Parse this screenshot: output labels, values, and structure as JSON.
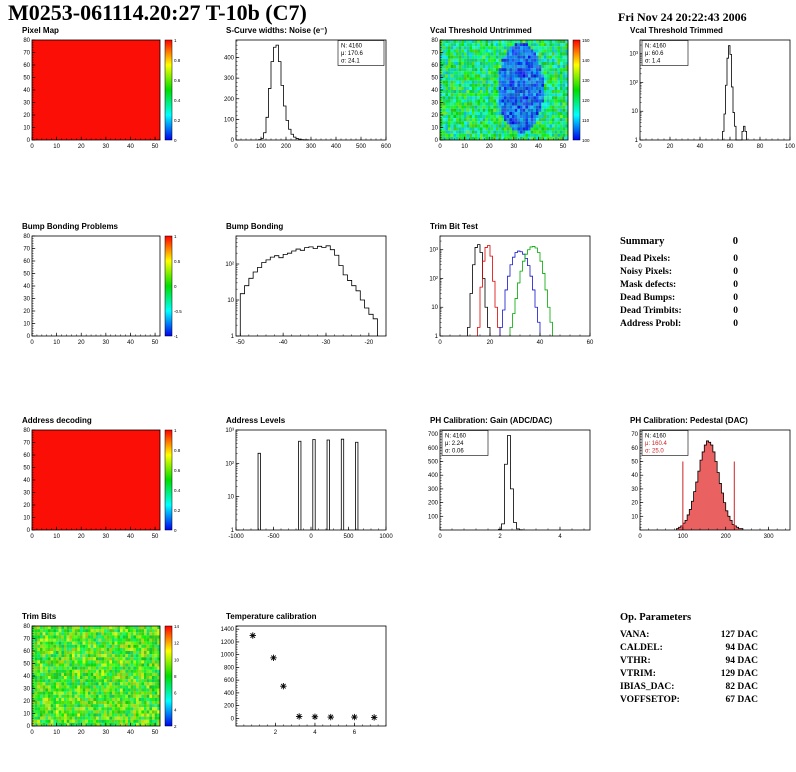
{
  "header": {
    "title": "M0253-061114.20:27 T-10b (C7)",
    "timestamp": "Fri Nov 24 20:22:43 2006"
  },
  "summary": {
    "heading": "Summary",
    "heading_value": "0",
    "rows": [
      {
        "label": "Dead Pixels:",
        "value": "0"
      },
      {
        "label": "Noisy Pixels:",
        "value": "0"
      },
      {
        "label": "Mask defects:",
        "value": "0"
      },
      {
        "label": "Dead Bumps:",
        "value": "0"
      },
      {
        "label": "Dead Trimbits:",
        "value": "0"
      },
      {
        "label": "Address Probl:",
        "value": "0"
      }
    ]
  },
  "op_parameters": {
    "heading": "Op. Parameters",
    "rows": [
      {
        "label": "VANA:",
        "value": "127 DAC"
      },
      {
        "label": "CALDEL:",
        "value": "94 DAC"
      },
      {
        "label": "VTHR:",
        "value": "94 DAC"
      },
      {
        "label": "VTRIM:",
        "value": "129 DAC"
      },
      {
        "label": "IBIAS_DAC:",
        "value": "82 DAC"
      },
      {
        "label": "VOFFSETOP:",
        "value": "67 DAC"
      }
    ]
  },
  "colors": {
    "map_red": "#fb0e06",
    "hist_line": "#000000",
    "trim_red": "#dd0000",
    "trim_blue": "#1414cc",
    "trim_green": "#00a800",
    "pedestal_fill": "#e85050",
    "stat_red": "#cc2222"
  },
  "chart_data": [
    {
      "id": "pixel-map",
      "type": "heatmap",
      "title": "Pixel Map",
      "x_range": [
        0,
        52
      ],
      "x_ticks": [
        0,
        10,
        20,
        30,
        40,
        50
      ],
      "y_range": [
        0,
        80
      ],
      "y_ticks": [
        0,
        10,
        20,
        30,
        40,
        50,
        60,
        70,
        80
      ],
      "fill": "solid",
      "fill_color": "#fb0e06",
      "colorbar_labels": [
        "1",
        "0.8",
        "0.6",
        "0.4",
        "0.2",
        "0"
      ]
    },
    {
      "id": "s-curve-noise",
      "type": "histogram",
      "title": "S-Curve widths: Noise (e⁻)",
      "x_range": [
        0,
        600
      ],
      "x_ticks": [
        0,
        100,
        200,
        300,
        400,
        500,
        600
      ],
      "y_range": [
        0,
        485
      ],
      "y_ticks": [
        0,
        100,
        200,
        300,
        400
      ],
      "stats": {
        "pos": "right",
        "lines": [
          {
            "text": "N: 4160"
          },
          {
            "text": "μ: 170.6"
          },
          {
            "text": "σ: 24.1"
          }
        ]
      },
      "series": [
        {
          "color": "#000000",
          "start": 90,
          "bin_width": 10,
          "values": [
            2,
            8,
            35,
            110,
            250,
            380,
            450,
            460,
            380,
            265,
            165,
            95,
            52,
            28,
            14,
            7,
            4,
            2,
            1,
            1
          ]
        }
      ]
    },
    {
      "id": "vcal-threshold-untrimmed",
      "type": "heatmap",
      "title": "Vcal Threshold Untrimmed",
      "x_range": [
        0,
        52
      ],
      "x_ticks": [
        0,
        10,
        20,
        30,
        40,
        50
      ],
      "y_range": [
        0,
        80
      ],
      "y_ticks": [
        0,
        10,
        20,
        30,
        40,
        50,
        60,
        70,
        80
      ],
      "fill": "noise",
      "noise": {
        "seed": 7,
        "hue_min": 95,
        "hue_max": 190,
        "blob": {
          "cx": 0.63,
          "cy": 0.48,
          "rx": 0.18,
          "ry": 0.45,
          "hue_min": 195,
          "hue_max": 238
        }
      },
      "colorbar_labels": [
        "150",
        "140",
        "130",
        "120",
        "110",
        "100"
      ]
    },
    {
      "id": "vcal-threshold-trimmed",
      "type": "histogram",
      "title": "Vcal Threshold Trimmed",
      "log_y": true,
      "x_range": [
        0,
        100
      ],
      "x_ticks": [
        0,
        20,
        40,
        60,
        80,
        100
      ],
      "y_range": [
        1,
        3000
      ],
      "y_ticks": [
        1,
        10,
        100,
        1000
      ],
      "y_tick_labels": [
        "1",
        "10",
        "10²",
        "10³"
      ],
      "stats": {
        "pos": "left",
        "lines": [
          {
            "text": "N: 4160"
          },
          {
            "text": "μ: 60.6"
          },
          {
            "text": "σ: 1.4"
          }
        ]
      },
      "series": [
        {
          "color": "#000000",
          "start": 55,
          "bin_width": 1,
          "values": [
            2,
            8,
            80,
            700,
            1900,
            950,
            70,
            9,
            3,
            0,
            0,
            0,
            0,
            2,
            3,
            2
          ]
        }
      ]
    },
    {
      "id": "bump-bonding-problems",
      "type": "heatmap",
      "title": "Bump Bonding Problems",
      "x_range": [
        0,
        52
      ],
      "x_ticks": [
        0,
        10,
        20,
        30,
        40,
        50
      ],
      "y_range": [
        0,
        80
      ],
      "y_ticks": [
        0,
        10,
        20,
        30,
        40,
        50,
        60,
        70,
        80
      ],
      "fill": "empty",
      "colorbar_labels": [
        "1",
        "0.5",
        "0",
        "-0.5",
        "-1"
      ]
    },
    {
      "id": "bump-bonding",
      "type": "histogram",
      "title": "Bump Bonding",
      "log_y": true,
      "x_range": [
        -51,
        -16
      ],
      "x_ticks": [
        -50,
        -40,
        -30,
        -20
      ],
      "y_range": [
        1,
        600
      ],
      "y_ticks": [
        1,
        10,
        100
      ],
      "y_tick_labels": [
        "1",
        "10",
        "10²"
      ],
      "series": [
        {
          "color": "#000000",
          "start": -50,
          "bin_width": 1,
          "values": [
            15,
            25,
            40,
            60,
            80,
            110,
            130,
            155,
            170,
            150,
            185,
            200,
            230,
            260,
            240,
            285,
            300,
            270,
            310,
            290,
            320,
            250,
            175,
            90,
            50,
            35,
            25,
            18,
            10,
            6,
            4,
            3
          ]
        }
      ]
    },
    {
      "id": "trim-bit-test",
      "type": "histogram",
      "title": "Trim Bit Test",
      "log_y": true,
      "x_range": [
        0,
        60
      ],
      "x_ticks": [
        0,
        20,
        40,
        60
      ],
      "y_range": [
        1,
        3000
      ],
      "y_ticks": [
        1,
        10,
        100,
        1000
      ],
      "y_tick_labels": [
        "1",
        "10",
        "10²",
        "10³"
      ],
      "series": [
        {
          "color": "#000000",
          "start": 11,
          "bin_width": 1,
          "values": [
            2,
            30,
            300,
            1200,
            1500,
            800,
            100,
            10,
            2
          ]
        },
        {
          "color": "#dd0000",
          "start": 15,
          "bin_width": 1,
          "values": [
            2,
            50,
            400,
            1200,
            1400,
            600,
            80,
            10,
            2
          ]
        },
        {
          "color": "#1414cc",
          "start": 24,
          "bin_width": 1,
          "values": [
            2,
            8,
            40,
            120,
            300,
            550,
            800,
            900,
            850,
            700,
            500,
            280,
            120,
            40,
            10,
            3
          ]
        },
        {
          "color": "#00a800",
          "start": 28,
          "bin_width": 1,
          "values": [
            2,
            6,
            20,
            70,
            180,
            400,
            700,
            1000,
            1250,
            1300,
            1150,
            800,
            400,
            150,
            40,
            10,
            3
          ]
        }
      ]
    },
    {
      "id": "address-decoding",
      "type": "heatmap",
      "title": "Address decoding",
      "x_range": [
        0,
        52
      ],
      "x_ticks": [
        0,
        10,
        20,
        30,
        40,
        50
      ],
      "y_range": [
        0,
        80
      ],
      "y_ticks": [
        0,
        10,
        20,
        30,
        40,
        50,
        60,
        70,
        80
      ],
      "fill": "solid",
      "fill_color": "#fb0e06",
      "colorbar_labels": [
        "1",
        "0.8",
        "0.6",
        "0.4",
        "0.2",
        "0"
      ]
    },
    {
      "id": "address-levels",
      "type": "spikes",
      "title": "Address Levels",
      "log_y": true,
      "x_range": [
        -1000,
        1000
      ],
      "x_ticks": [
        -1000,
        -500,
        0,
        500,
        1000
      ],
      "y_range": [
        1,
        1000
      ],
      "y_ticks": [
        1,
        10,
        100,
        1000
      ],
      "y_tick_labels": [
        "1",
        "10",
        "10²",
        "10³"
      ],
      "spikes": [
        [
          -690,
          200
        ],
        [
          -150,
          460
        ],
        [
          40,
          520
        ],
        [
          230,
          500
        ],
        [
          420,
          530
        ],
        [
          610,
          430
        ]
      ]
    },
    {
      "id": "ph-calibration-gain",
      "type": "histogram",
      "title": "PH Calibration: Gain (ADC/DAC)",
      "x_range": [
        0,
        5
      ],
      "x_ticks": [
        0,
        2,
        4
      ],
      "y_range": [
        0,
        730
      ],
      "y_ticks": [
        100,
        200,
        300,
        400,
        500,
        600,
        700
      ],
      "stats": {
        "pos": "left",
        "lines": [
          {
            "text": "N: 4160"
          },
          {
            "text": "μ: 2.24"
          },
          {
            "text": "σ: 0.06"
          }
        ]
      },
      "series": [
        {
          "color": "#000000",
          "start": 1.95,
          "bin_width": 0.1,
          "values": [
            5,
            45,
            480,
            690,
            300,
            55,
            8,
            2
          ]
        }
      ]
    },
    {
      "id": "ph-calibration-pedestal",
      "type": "histogram",
      "title": "PH Calibration: Pedestal (DAC)",
      "x_range": [
        0,
        350
      ],
      "x_ticks": [
        0,
        100,
        200,
        300
      ],
      "y_range": [
        0,
        73
      ],
      "y_ticks": [
        10,
        20,
        30,
        40,
        50,
        60,
        70
      ],
      "stats": {
        "pos": "left",
        "lines": [
          {
            "text": "N: 4160",
            "color": "#000000"
          },
          {
            "text": "μ: 160.4",
            "color": "#cc2222"
          },
          {
            "text": "σ: 25.0",
            "color": "#cc2222"
          }
        ]
      },
      "vlines": [
        {
          "x": 100,
          "y": 50,
          "color": "#cc2222"
        },
        {
          "x": 220,
          "y": 50,
          "color": "#cc2222"
        }
      ],
      "series": [
        {
          "color": "#000000",
          "fill": "#e85050",
          "start": 85,
          "bin_width": 5,
          "values": [
            1,
            2,
            3,
            5,
            7,
            11,
            15,
            21,
            28,
            35,
            43,
            51,
            57,
            62,
            65,
            64,
            62,
            57,
            50,
            42,
            34,
            27,
            20,
            14,
            10,
            7,
            4,
            3,
            2,
            1,
            1
          ]
        }
      ]
    },
    {
      "id": "trim-bits",
      "type": "heatmap",
      "title": "Trim Bits",
      "x_range": [
        0,
        52
      ],
      "x_ticks": [
        0,
        10,
        20,
        30,
        40,
        50
      ],
      "y_range": [
        0,
        80
      ],
      "y_ticks": [
        0,
        10,
        20,
        30,
        40,
        50,
        60,
        70,
        80
      ],
      "fill": "noise",
      "noise": {
        "seed": 13,
        "hue_min": 66,
        "hue_max": 150
      },
      "colorbar_labels": [
        "14",
        "12",
        "10",
        "8",
        "6",
        "4",
        "2"
      ]
    },
    {
      "id": "temperature-calibration",
      "type": "scatter",
      "title": "Temperature calibration",
      "x_range": [
        0,
        7.6
      ],
      "x_ticks": [
        2,
        4,
        6
      ],
      "y_range": [
        -120,
        1450
      ],
      "y_ticks": [
        0,
        200,
        400,
        600,
        800,
        1000,
        1200,
        1400
      ],
      "marker": "asterisk",
      "color": "#000000",
      "points": [
        [
          0.85,
          1300
        ],
        [
          1.9,
          950
        ],
        [
          2.4,
          505
        ],
        [
          3.2,
          30
        ],
        [
          4.0,
          25
        ],
        [
          4.8,
          20
        ],
        [
          6.0,
          20
        ],
        [
          7.0,
          15
        ]
      ]
    }
  ]
}
